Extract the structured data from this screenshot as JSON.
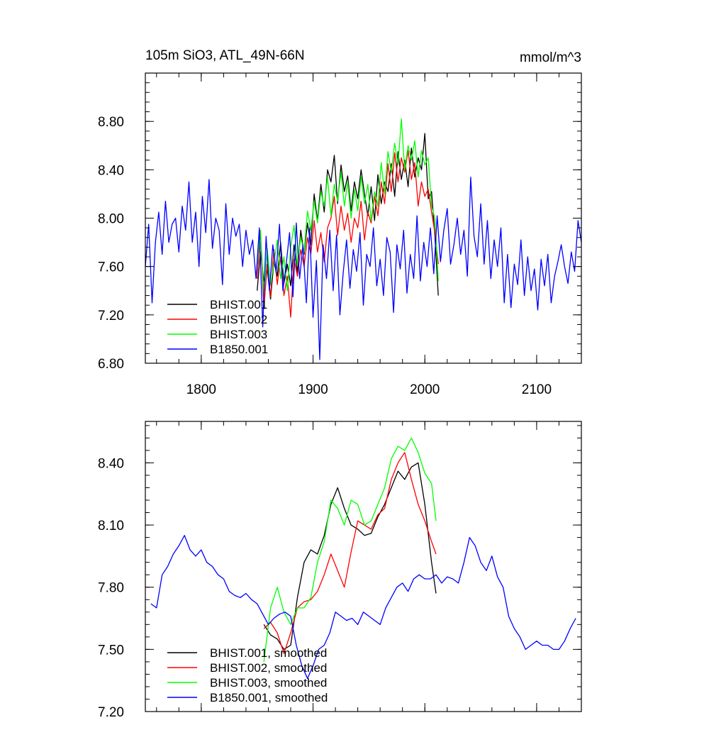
{
  "colors": {
    "BHIST_001": "#000000",
    "BHIST_002": "#ff0000",
    "BHIST_003": "#00ff00",
    "B1850_001": "#0000ff",
    "axis": "#000000",
    "background": "#ffffff"
  },
  "chart_data": [
    {
      "type": "line",
      "title": "105m SiO3, ATL_49N-66N",
      "units": "mmol/m^3",
      "xlabel": "",
      "ylabel": "",
      "xlim": [
        1750,
        2140
      ],
      "ylim": [
        6.8,
        9.2
      ],
      "xticks": [
        1800,
        1900,
        2000,
        2100
      ],
      "xtick_labels": [
        "1800",
        "1900",
        "2000",
        "2100"
      ],
      "yticks": [
        6.8,
        7.2,
        7.6,
        8.0,
        8.4,
        8.8
      ],
      "ytick_labels": [
        "6.80",
        "7.20",
        "7.60",
        "8.00",
        "8.40",
        "8.80"
      ],
      "legend_position": "bottom-left",
      "grid": false,
      "series": [
        {
          "name": "BHIST.001",
          "color_key": "BHIST_001",
          "x": [
            1850,
            1853,
            1856,
            1859,
            1862,
            1865,
            1868,
            1871,
            1874,
            1877,
            1880,
            1883,
            1886,
            1889,
            1892,
            1895,
            1898,
            1901,
            1904,
            1907,
            1910,
            1913,
            1916,
            1919,
            1922,
            1925,
            1928,
            1931,
            1934,
            1937,
            1940,
            1943,
            1946,
            1949,
            1952,
            1955,
            1958,
            1961,
            1964,
            1967,
            1970,
            1973,
            1976,
            1979,
            1982,
            1985,
            1988,
            1991,
            1994,
            1997,
            2000,
            2003,
            2006,
            2009,
            2012
          ],
          "y": [
            7.4,
            7.72,
            7.48,
            7.58,
            7.33,
            7.64,
            7.52,
            7.8,
            7.46,
            7.62,
            7.44,
            7.78,
            7.55,
            7.9,
            7.7,
            7.96,
            7.78,
            8.2,
            7.98,
            8.28,
            8.05,
            8.4,
            8.3,
            8.52,
            8.12,
            8.44,
            8.22,
            8.35,
            8.06,
            8.3,
            8.16,
            8.4,
            8.2,
            8.02,
            8.26,
            7.98,
            8.36,
            8.12,
            8.3,
            8.22,
            8.45,
            8.18,
            8.55,
            8.32,
            8.48,
            8.26,
            8.58,
            8.34,
            8.5,
            8.4,
            8.7,
            8.16,
            8.22,
            7.85,
            7.36
          ]
        },
        {
          "name": "BHIST.002",
          "color_key": "BHIST_002",
          "x": [
            1850,
            1853,
            1856,
            1859,
            1862,
            1865,
            1868,
            1871,
            1874,
            1877,
            1880,
            1883,
            1886,
            1889,
            1892,
            1895,
            1898,
            1901,
            1904,
            1907,
            1910,
            1913,
            1916,
            1919,
            1922,
            1925,
            1928,
            1931,
            1934,
            1937,
            1940,
            1943,
            1946,
            1949,
            1952,
            1955,
            1958,
            1961,
            1964,
            1967,
            1970,
            1973,
            1976,
            1979,
            1982,
            1985,
            1988,
            1991,
            1994,
            1997,
            2000,
            2003,
            2006,
            2009,
            2012
          ],
          "y": [
            7.5,
            7.9,
            7.25,
            7.62,
            7.35,
            7.74,
            7.45,
            7.68,
            7.36,
            7.52,
            7.18,
            7.66,
            7.52,
            7.74,
            7.6,
            7.84,
            7.7,
            7.98,
            7.72,
            7.88,
            7.64,
            7.92,
            8.0,
            8.18,
            7.86,
            8.1,
            7.9,
            8.04,
            7.8,
            8.0,
            7.92,
            8.14,
            7.82,
            8.05,
            7.96,
            8.18,
            8.02,
            8.3,
            8.12,
            8.45,
            8.22,
            8.54,
            8.3,
            8.5,
            8.38,
            8.56,
            8.32,
            8.46,
            8.1,
            8.3,
            8.18,
            8.24,
            8.05,
            7.88,
            7.62
          ]
        },
        {
          "name": "BHIST.003",
          "color_key": "BHIST_003",
          "x": [
            1850,
            1853,
            1856,
            1859,
            1862,
            1865,
            1868,
            1871,
            1874,
            1877,
            1880,
            1883,
            1886,
            1889,
            1892,
            1895,
            1898,
            1901,
            1904,
            1907,
            1910,
            1913,
            1916,
            1919,
            1922,
            1925,
            1928,
            1931,
            1934,
            1937,
            1940,
            1943,
            1946,
            1949,
            1952,
            1955,
            1958,
            1961,
            1964,
            1967,
            1970,
            1973,
            1976,
            1979,
            1982,
            1985,
            1988,
            1991,
            1994,
            1997,
            2000,
            2003,
            2006,
            2009,
            2012
          ],
          "y": [
            7.62,
            7.9,
            7.36,
            7.75,
            7.45,
            7.62,
            7.82,
            7.5,
            7.68,
            7.4,
            7.76,
            7.94,
            7.62,
            7.84,
            7.72,
            8.06,
            7.9,
            8.14,
            7.96,
            8.22,
            8.1,
            8.34,
            8.02,
            8.28,
            8.14,
            8.38,
            8.1,
            8.3,
            8.0,
            8.24,
            8.06,
            8.34,
            8.12,
            8.28,
            7.98,
            8.22,
            8.1,
            8.46,
            8.2,
            8.55,
            8.38,
            8.62,
            8.44,
            8.82,
            8.4,
            8.6,
            8.48,
            8.64,
            8.34,
            8.56,
            8.44,
            8.5,
            8.1,
            8.0,
            7.48
          ]
        },
        {
          "name": "B1850.001",
          "color_key": "B1850_001",
          "x": [
            1750,
            1753,
            1756,
            1759,
            1762,
            1765,
            1768,
            1771,
            1774,
            1777,
            1780,
            1783,
            1786,
            1789,
            1792,
            1795,
            1798,
            1801,
            1804,
            1807,
            1810,
            1813,
            1816,
            1819,
            1822,
            1825,
            1828,
            1831,
            1834,
            1837,
            1840,
            1843,
            1846,
            1849,
            1852,
            1855,
            1858,
            1861,
            1864,
            1867,
            1870,
            1873,
            1876,
            1879,
            1882,
            1885,
            1888,
            1891,
            1894,
            1897,
            1900,
            1903,
            1906,
            1909,
            1912,
            1915,
            1918,
            1921,
            1924,
            1927,
            1930,
            1933,
            1936,
            1939,
            1942,
            1945,
            1948,
            1951,
            1954,
            1957,
            1960,
            1963,
            1966,
            1969,
            1972,
            1975,
            1978,
            1981,
            1984,
            1987,
            1990,
            1993,
            1996,
            1999,
            2002,
            2005,
            2008,
            2011,
            2014,
            2017,
            2020,
            2023,
            2026,
            2029,
            2032,
            2035,
            2038,
            2041,
            2044,
            2047,
            2050,
            2053,
            2056,
            2059,
            2062,
            2065,
            2068,
            2071,
            2074,
            2077,
            2080,
            2083,
            2086,
            2089,
            2092,
            2095,
            2098,
            2101,
            2104,
            2107,
            2110,
            2113,
            2116,
            2119,
            2122,
            2125,
            2128,
            2131,
            2134,
            2137,
            2140
          ],
          "y": [
            7.6,
            7.95,
            7.3,
            7.8,
            8.05,
            7.7,
            8.14,
            7.8,
            7.95,
            8.0,
            7.72,
            8.1,
            7.9,
            8.3,
            7.8,
            8.05,
            7.6,
            8.18,
            7.88,
            8.32,
            7.75,
            8.0,
            7.9,
            7.45,
            8.12,
            7.7,
            8.0,
            7.85,
            7.95,
            7.6,
            7.9,
            7.7,
            7.82,
            7.5,
            7.92,
            7.1,
            7.85,
            7.4,
            7.78,
            7.55,
            7.95,
            7.4,
            7.62,
            7.88,
            7.35,
            7.96,
            7.5,
            7.78,
            7.3,
            7.92,
            7.18,
            7.65,
            6.83,
            7.78,
            7.5,
            7.9,
            7.4,
            7.86,
            7.2,
            7.55,
            7.82,
            7.42,
            7.74,
            7.56,
            7.88,
            7.28,
            7.7,
            7.6,
            7.92,
            7.44,
            7.66,
            7.36,
            7.84,
            7.72,
            7.22,
            7.78,
            7.58,
            7.9,
            7.38,
            7.7,
            7.5,
            8.02,
            7.48,
            7.8,
            7.6,
            7.92,
            7.54,
            8.02,
            7.64,
            7.9,
            8.08,
            7.62,
            7.78,
            8.0,
            7.7,
            7.9,
            7.52,
            8.34,
            7.85,
            7.68,
            8.12,
            7.62,
            7.98,
            7.5,
            7.82,
            7.6,
            7.92,
            7.3,
            7.7,
            7.26,
            7.62,
            7.45,
            7.82,
            7.36,
            7.68,
            7.4,
            7.58,
            7.24,
            7.66,
            7.44,
            7.7,
            7.3,
            7.52,
            7.64,
            7.78,
            7.6,
            7.46,
            7.72,
            7.56,
            7.98,
            7.8
          ]
        }
      ]
    },
    {
      "type": "line",
      "title": "",
      "xlabel": "",
      "ylabel": "",
      "xlim": [
        1750,
        2140
      ],
      "ylim": [
        7.2,
        8.6
      ],
      "xticks": [
        1800,
        1900,
        2000,
        2100
      ],
      "yticks": [
        7.2,
        7.5,
        7.8,
        8.1,
        8.4
      ],
      "ytick_labels": [
        "7.20",
        "7.50",
        "7.80",
        "8.10",
        "8.40"
      ],
      "legend_position": "bottom-left",
      "grid": false,
      "series": [
        {
          "name": "BHIST.001, smoothed",
          "color_key": "BHIST_001",
          "x": [
            1856,
            1862,
            1868,
            1874,
            1880,
            1886,
            1892,
            1898,
            1904,
            1910,
            1916,
            1922,
            1928,
            1934,
            1940,
            1946,
            1952,
            1958,
            1964,
            1970,
            1976,
            1982,
            1988,
            1994,
            2000,
            2006,
            2010
          ],
          "y": [
            7.62,
            7.57,
            7.55,
            7.5,
            7.52,
            7.75,
            7.92,
            7.98,
            7.96,
            8.05,
            8.2,
            8.28,
            8.18,
            8.1,
            8.08,
            8.05,
            8.06,
            8.14,
            8.2,
            8.28,
            8.36,
            8.32,
            8.38,
            8.4,
            8.2,
            7.92,
            7.77
          ]
        },
        {
          "name": "BHIST.002, smoothed",
          "color_key": "BHIST_002",
          "x": [
            1856,
            1862,
            1868,
            1874,
            1880,
            1886,
            1892,
            1898,
            1904,
            1910,
            1916,
            1922,
            1928,
            1934,
            1940,
            1946,
            1952,
            1958,
            1964,
            1970,
            1976,
            1982,
            1988,
            1994,
            2000,
            2006,
            2010
          ],
          "y": [
            7.6,
            7.63,
            7.58,
            7.48,
            7.58,
            7.7,
            7.73,
            7.74,
            7.78,
            7.86,
            7.96,
            7.88,
            7.8,
            7.97,
            8.12,
            8.1,
            8.08,
            8.15,
            8.18,
            8.32,
            8.4,
            8.45,
            8.32,
            8.2,
            8.12,
            8.02,
            7.96
          ]
        },
        {
          "name": "BHIST.003, smoothed",
          "color_key": "BHIST_003",
          "x": [
            1856,
            1862,
            1868,
            1874,
            1880,
            1886,
            1892,
            1898,
            1904,
            1910,
            1916,
            1922,
            1928,
            1934,
            1940,
            1946,
            1952,
            1958,
            1964,
            1970,
            1976,
            1982,
            1988,
            1994,
            2000,
            2006,
            2010
          ],
          "y": [
            7.44,
            7.7,
            7.8,
            7.68,
            7.62,
            7.7,
            7.7,
            7.75,
            7.92,
            8.02,
            8.22,
            8.18,
            8.1,
            8.22,
            8.2,
            8.1,
            8.12,
            8.2,
            8.28,
            8.42,
            8.48,
            8.46,
            8.52,
            8.45,
            8.35,
            8.3,
            8.12
          ]
        },
        {
          "name": "B1850.001, smoothed",
          "color_key": "B1850_001",
          "x": [
            1755,
            1760,
            1765,
            1770,
            1775,
            1780,
            1785,
            1790,
            1795,
            1800,
            1805,
            1810,
            1815,
            1820,
            1825,
            1830,
            1835,
            1840,
            1845,
            1850,
            1855,
            1860,
            1865,
            1870,
            1875,
            1880,
            1885,
            1890,
            1895,
            1900,
            1905,
            1910,
            1915,
            1920,
            1925,
            1930,
            1935,
            1940,
            1945,
            1950,
            1955,
            1960,
            1965,
            1970,
            1975,
            1980,
            1985,
            1990,
            1995,
            2000,
            2005,
            2010,
            2015,
            2020,
            2025,
            2030,
            2035,
            2040,
            2045,
            2050,
            2055,
            2060,
            2065,
            2070,
            2075,
            2080,
            2085,
            2090,
            2095,
            2100,
            2105,
            2110,
            2115,
            2120,
            2125,
            2130,
            2135
          ],
          "y": [
            7.72,
            7.7,
            7.86,
            7.9,
            7.96,
            8.0,
            8.05,
            7.98,
            7.95,
            7.98,
            7.92,
            7.9,
            7.86,
            7.84,
            7.78,
            7.76,
            7.75,
            7.77,
            7.74,
            7.72,
            7.67,
            7.62,
            7.65,
            7.67,
            7.68,
            7.66,
            7.52,
            7.42,
            7.36,
            7.42,
            7.5,
            7.52,
            7.58,
            7.68,
            7.66,
            7.64,
            7.65,
            7.62,
            7.68,
            7.66,
            7.64,
            7.62,
            7.7,
            7.75,
            7.8,
            7.82,
            7.78,
            7.84,
            7.86,
            7.84,
            7.84,
            7.86,
            7.82,
            7.85,
            7.84,
            7.82,
            7.92,
            8.04,
            8.0,
            7.92,
            7.88,
            7.95,
            7.85,
            7.8,
            7.66,
            7.6,
            7.56,
            7.5,
            7.52,
            7.54,
            7.52,
            7.52,
            7.5,
            7.5,
            7.54,
            7.6,
            7.65
          ]
        }
      ]
    }
  ]
}
